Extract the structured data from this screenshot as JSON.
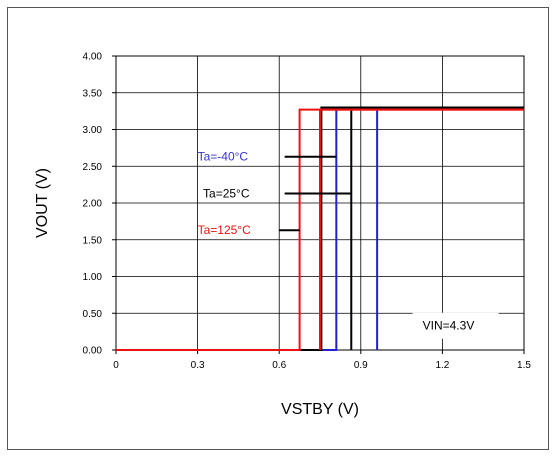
{
  "chart_data": {
    "type": "line",
    "xlabel": "VSTBY (V)",
    "ylabel": "VOUT (V)",
    "xlim": [
      0,
      1.5
    ],
    "ylim": [
      0,
      4.0
    ],
    "x_ticks": [
      "0",
      "0.3",
      "0.6",
      "0.9",
      "1.2",
      "1.5"
    ],
    "y_ticks": [
      "0.00",
      "0.50",
      "1.00",
      "1.50",
      "2.00",
      "2.50",
      "3.00",
      "3.50",
      "4.00"
    ],
    "grid": true,
    "series": [
      {
        "name": "Ta=-40°C",
        "color": "#2222cc",
        "rise": {
          "x": [
            0.0,
            0.81,
            0.81,
            1.5
          ],
          "y": [
            0.0,
            0.0,
            3.3,
            3.3
          ]
        },
        "fall": {
          "x": [
            1.5,
            0.96,
            0.96
          ],
          "y": [
            3.3,
            3.3,
            0.0
          ]
        }
      },
      {
        "name": "Ta=25°C",
        "color": "#000000",
        "rise": {
          "x": [
            0.0,
            0.755,
            0.755,
            1.5
          ],
          "y": [
            0.0,
            0.0,
            3.3,
            3.3
          ]
        },
        "fall": {
          "x": [
            1.5,
            0.865,
            0.865
          ],
          "y": [
            3.3,
            3.3,
            0.0
          ]
        }
      },
      {
        "name": "Ta=125°C",
        "color": "#ee1111",
        "rise": {
          "x": [
            0.0,
            0.675,
            0.675,
            1.5
          ],
          "y": [
            0.0,
            0.0,
            3.27,
            3.27
          ]
        },
        "fall": {
          "x": [
            1.5,
            0.75,
            0.75
          ],
          "y": [
            3.27,
            3.27,
            0.0
          ]
        }
      }
    ],
    "annotations": [
      {
        "text": "Ta=-40°C",
        "color": "#3333cc",
        "label_x": 0.3,
        "y": 2.63,
        "line_x": [
          0.62,
          0.81
        ]
      },
      {
        "text": "Ta=25°C",
        "color": "#000000",
        "label_x": 0.32,
        "y": 2.13,
        "line_x": [
          0.62,
          0.865
        ]
      },
      {
        "text": "Ta=125°C",
        "color": "#ee1111",
        "label_x": 0.3,
        "y": 1.63,
        "line_x": [
          0.6,
          0.675
        ]
      },
      {
        "text": "VIN=4.3V",
        "color": "#000000",
        "label_x": 1.12,
        "y": 0.33,
        "line_x": [],
        "boxed": true
      }
    ]
  }
}
